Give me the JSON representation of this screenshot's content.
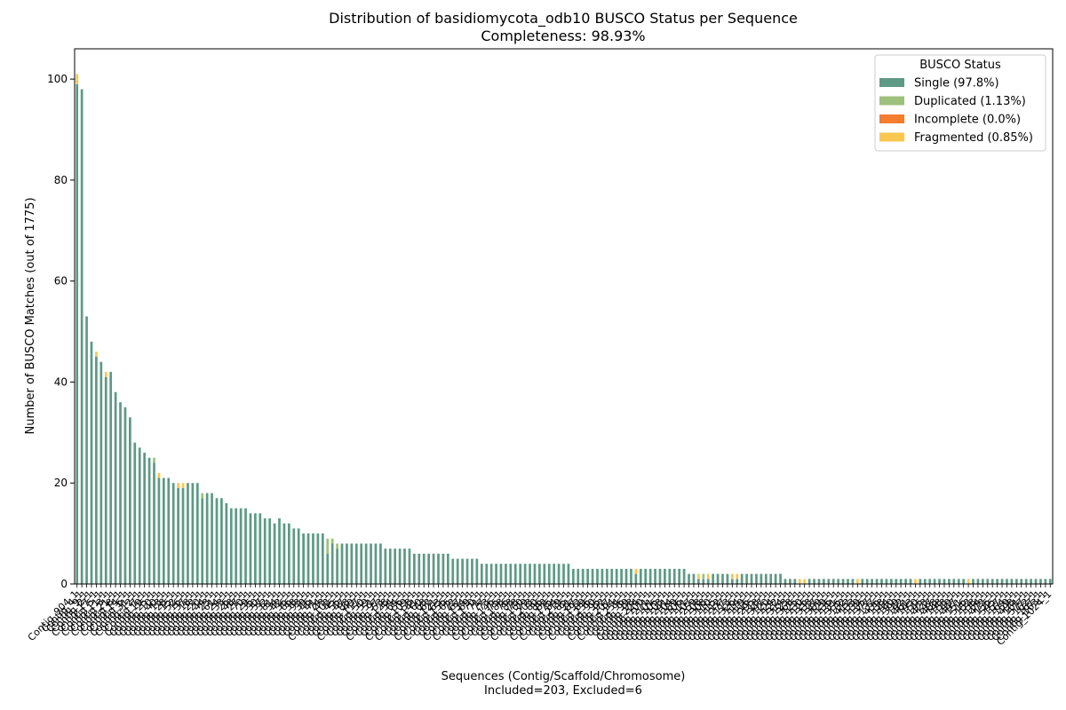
{
  "chart_data": {
    "type": "bar",
    "stacked": true,
    "title": "Distribution of basidiomycota_odb10 BUSCO Status per Sequence",
    "subtitle": "Completeness: 98.93%",
    "xlabel": "Sequences (Contig/Scaffold/Chromosome)",
    "xlabel_sub": "Included=203, Excluded=6",
    "ylabel": "Number of BUSCO Matches (out of 1775)",
    "ylim": [
      0,
      106
    ],
    "yticks": [
      0,
      20,
      40,
      60,
      80,
      100
    ],
    "grid": false,
    "legend": {
      "title": "BUSCO Status",
      "placement": "top-right"
    },
    "colors": {
      "single": "#5e9985",
      "duplicated": "#9ec17d",
      "incomplete": "#f47d2e",
      "fragmented": "#f9c74f"
    },
    "series": [
      {
        "key": "single",
        "name": "Single (97.8%)"
      },
      {
        "key": "duplicated",
        "name": "Duplicated (1.13%)"
      },
      {
        "key": "incomplete",
        "name": "Incomplete (0.0%)"
      },
      {
        "key": "fragmented",
        "name": "Fragmented (0.85%)"
      }
    ],
    "categories": [
      "Contig_904_1",
      "Contig_4_1",
      "Contig_9_1",
      "Contig_2_1",
      "Contig_17_1",
      "Contig_5_1",
      "Contig_11_1",
      "Contig_3_1",
      "Contig_21_1",
      "Contig_8_1",
      "Contig_14_1",
      "Contig_6_1",
      "Contig_31_1",
      "Contig_12_1",
      "Contig_7_1",
      "Contig_19_1",
      "Contig_25_1",
      "Contig_10_1",
      "Contig_40_1",
      "Contig_13_1",
      "Contig_28_1",
      "Contig_15_1",
      "Contig_52_1",
      "Contig_16_1",
      "Contig_37_1",
      "Contig_18_1",
      "Contig_22_1",
      "Contig_20_1",
      "Contig_44_1",
      "Contig_23_1",
      "Contig_61_1",
      "Contig_24_1",
      "Contig_33_1",
      "Contig_26_1",
      "Contig_48_1",
      "Contig_27_1",
      "Contig_70_1",
      "Contig_29_1",
      "Contig_35_1",
      "Contig_30_1",
      "Contig_57_1",
      "Contig_32_1",
      "Contig_81_1",
      "Contig_34_1",
      "Contig_42_1",
      "Contig_36_1",
      "Contig_66_1",
      "Contig_38_1",
      "Contig_93_1",
      "Contig_39_1",
      "Contig_46_1",
      "Contig_41_1",
      "Contig_74_1",
      "Contig_43_1",
      "Contig_102_1",
      "Contig_45_1",
      "Contig_55_1",
      "Contig_47_1",
      "Contig_88_1",
      "Contig_49_1",
      "Contig_117_1",
      "Contig_50_1",
      "Contig_59_1",
      "Contig_51_1",
      "Contig_97_1",
      "Contig_53_1",
      "Contig_128_1",
      "Contig_54_1",
      "Contig_64_1",
      "Contig_56_1",
      "Contig_109_1",
      "Contig_58_1",
      "Contig_141_1",
      "Contig_60_1",
      "Contig_68_1",
      "Contig_62_1",
      "Contig_121_1",
      "Contig_63_1",
      "Contig_156_1",
      "Contig_65_1",
      "Contig_72_1",
      "Contig_67_1",
      "Contig_134_1",
      "Contig_69_1",
      "Contig_170_1",
      "Contig_71_1",
      "Contig_77_1",
      "Contig_73_1",
      "Contig_146_1",
      "Contig_75_1",
      "Contig_188_1",
      "Contig_76_1",
      "Contig_83_1",
      "Contig_78_1",
      "Contig_160_1",
      "Contig_79_1",
      "Contig_203_1",
      "Contig_80_1",
      "Contig_86_1",
      "Contig_82_1",
      "Contig_175_1",
      "Contig_84_1",
      "Contig_219_1",
      "Contig_85_1",
      "Contig_91_1",
      "Contig_87_1",
      "Contig_192_1",
      "Contig_89_1",
      "Contig_236_1",
      "Contig_90_1",
      "Contig_95_1",
      "Contig_92_1",
      "Contig_207_1",
      "Contig_94_1",
      "Contig_254_1",
      "Contig_96_1",
      "Contig_99_1",
      "Contig_98_1",
      "Contig_224_1",
      "Contig_100_1",
      "Contig_271_1",
      "Contig_101_1",
      "Contig_105_1",
      "Contig_103_1",
      "Contig_241_1",
      "Contig_104_1",
      "Contig_289_1",
      "Contig_106_1",
      "Contig_111_1",
      "Contig_107_1",
      "Contig_259_1",
      "Contig_108_1",
      "Contig_308_1",
      "Contig_110_1",
      "Contig_115_1",
      "Contig_112_1",
      "Contig_277_1",
      "Contig_113_1",
      "Contig_326_1",
      "Contig_114_1",
      "Contig_119_1",
      "Contig_116_1",
      "Contig_295_1",
      "Contig_118_1",
      "Contig_347_1",
      "Contig_120_1",
      "Contig_124_1",
      "Contig_122_1",
      "Contig_314_1",
      "Contig_123_1",
      "Contig_368_1",
      "Contig_125_1",
      "Contig_130_1",
      "Contig_126_1",
      "Contig_333_1",
      "Contig_127_1",
      "Contig_389_1",
      "Contig_129_1",
      "Contig_136_1",
      "Contig_131_1",
      "Contig_355_1",
      "Contig_132_1",
      "Contig_412_1",
      "Contig_133_1",
      "Contig_139_1",
      "Contig_135_1",
      "Contig_377_1",
      "Contig_137_1",
      "Contig_436_1",
      "Contig_138_1",
      "Contig_144_1",
      "Contig_140_1",
      "Contig_399_1",
      "Contig_142_1",
      "Contig_461_1",
      "Contig_143_1",
      "Contig_150_1",
      "Contig_145_1",
      "Contig_423_1",
      "Contig_147_1",
      "Contig_488_1",
      "Contig_148_1",
      "Contig_153_1",
      "Contig_149_1",
      "Contig_447_1",
      "Contig_151_1",
      "Contig_516_1",
      "Contig_152_1",
      "Contig_158_1",
      "Contig_154_1",
      "Contig_472_1",
      "Contig_155_1",
      "Contig_545_1",
      "Contig_157_1",
      "Contig_164_1",
      "Contig_159_1",
      "Contig_498_1",
      "Contig_161_1",
      "Contig_577_1",
      "Contig_162_1",
      "Contig_167_1",
      "Contig_163_1",
      "Contig_1024_1"
    ],
    "single": [
      99,
      98,
      53,
      48,
      45,
      44,
      41,
      42,
      38,
      36,
      35,
      33,
      28,
      27,
      26,
      25,
      24,
      21,
      21,
      21,
      20,
      19,
      19,
      20,
      20,
      20,
      17,
      18,
      18,
      17,
      17,
      16,
      15,
      15,
      15,
      15,
      14,
      14,
      14,
      13,
      13,
      12,
      13,
      12,
      12,
      11,
      11,
      10,
      10,
      10,
      10,
      10,
      6,
      8,
      7,
      8,
      8,
      8,
      8,
      8,
      8,
      8,
      8,
      8,
      7,
      7,
      7,
      7,
      7,
      7,
      6,
      6,
      6,
      6,
      6,
      6,
      6,
      6,
      5,
      5,
      5,
      5,
      5,
      5,
      4,
      4,
      4,
      4,
      4,
      4,
      4,
      4,
      4,
      4,
      4,
      4,
      4,
      4,
      4,
      4,
      4,
      4,
      4,
      3,
      3,
      3,
      3,
      3,
      3,
      3,
      3,
      3,
      3,
      3,
      3,
      3,
      2,
      3,
      3,
      3,
      3,
      3,
      3,
      3,
      3,
      3,
      3,
      2,
      2,
      1,
      1,
      1,
      2,
      2,
      2,
      2,
      1,
      1,
      2,
      2,
      2,
      2,
      2,
      2,
      2,
      2,
      2,
      1,
      1,
      1,
      0,
      0,
      1,
      1,
      1,
      1,
      1,
      1,
      1,
      1,
      1,
      1,
      0,
      1,
      1,
      1,
      1,
      1,
      1,
      1,
      1,
      1,
      1,
      1,
      0,
      1,
      1,
      1,
      1,
      1,
      1,
      1,
      1,
      1,
      1,
      0,
      1,
      1,
      1,
      1,
      1,
      1,
      1,
      1,
      1,
      1,
      1,
      1,
      1,
      1,
      1,
      1,
      1,
      1,
      1
    ],
    "duplicated": [
      0,
      0,
      0,
      0,
      0,
      0,
      0,
      0,
      0,
      0,
      0,
      0,
      0,
      0,
      0,
      0,
      1,
      0,
      0,
      0,
      0,
      0,
      0,
      0,
      0,
      0,
      1,
      0,
      0,
      0,
      0,
      0,
      0,
      0,
      0,
      0,
      0,
      0,
      0,
      0,
      0,
      0,
      0,
      0,
      0,
      0,
      0,
      0,
      0,
      0,
      0,
      0,
      3,
      1,
      1,
      0,
      0,
      0,
      0,
      0,
      0,
      0,
      0,
      0,
      0,
      0,
      0,
      0,
      0,
      0,
      0,
      0,
      0,
      0,
      0,
      0,
      0,
      0,
      0,
      0,
      0,
      0,
      0,
      0,
      0,
      0,
      0,
      0,
      0,
      0,
      0,
      0,
      0,
      0,
      0,
      0,
      0,
      0,
      0,
      0,
      0,
      0,
      0,
      0,
      0,
      0,
      0,
      0,
      0,
      0,
      0,
      0,
      0,
      0,
      0,
      0,
      0,
      0,
      0,
      0,
      0,
      0,
      0,
      0,
      0,
      0,
      0,
      0,
      0,
      0,
      1,
      0,
      0,
      0,
      0,
      0,
      0,
      0,
      0,
      0,
      0,
      0,
      0,
      0,
      0,
      0,
      0,
      0,
      0,
      0,
      0,
      0,
      0,
      0,
      0,
      0,
      0,
      0,
      0,
      0,
      0,
      0,
      0,
      0,
      0,
      0,
      0,
      0,
      0,
      0,
      0,
      0,
      0,
      0,
      0,
      0,
      0,
      0,
      0,
      0,
      0,
      0,
      0,
      0,
      0,
      0,
      0,
      0,
      0,
      0,
      0,
      0,
      0,
      0,
      0,
      0,
      0,
      0,
      0,
      0,
      0,
      0,
      0
    ],
    "incomplete": [
      0,
      0,
      0,
      0,
      0,
      0,
      0,
      0,
      0,
      0,
      0,
      0,
      0,
      0,
      0,
      0,
      0,
      0,
      0,
      0,
      0,
      0,
      0,
      0,
      0,
      0,
      0,
      0,
      0,
      0,
      0,
      0,
      0,
      0,
      0,
      0,
      0,
      0,
      0,
      0,
      0,
      0,
      0,
      0,
      0,
      0,
      0,
      0,
      0,
      0,
      0,
      0,
      0,
      0,
      0,
      0,
      0,
      0,
      0,
      0,
      0,
      0,
      0,
      0,
      0,
      0,
      0,
      0,
      0,
      0,
      0,
      0,
      0,
      0,
      0,
      0,
      0,
      0,
      0,
      0,
      0,
      0,
      0,
      0,
      0,
      0,
      0,
      0,
      0,
      0,
      0,
      0,
      0,
      0,
      0,
      0,
      0,
      0,
      0,
      0,
      0,
      0,
      0,
      0,
      0,
      0,
      0,
      0,
      0,
      0,
      0,
      0,
      0,
      0,
      0,
      0,
      0,
      0,
      0,
      0,
      0,
      0,
      0,
      0,
      0,
      0,
      0,
      0,
      0,
      0,
      0,
      0,
      0,
      0,
      0,
      0,
      0,
      0,
      0,
      0,
      0,
      0,
      0,
      0,
      0,
      0,
      0,
      0,
      0,
      0,
      0,
      0,
      0,
      0,
      0,
      0,
      0,
      0,
      0,
      0,
      0,
      0,
      0,
      0,
      0,
      0,
      0,
      0,
      0,
      0,
      0,
      0,
      0,
      0,
      0,
      0,
      0,
      0,
      0,
      0,
      0,
      0,
      0,
      0,
      0,
      0,
      0,
      0,
      0,
      0,
      0,
      0,
      0,
      0,
      0,
      0,
      0,
      0,
      0,
      0,
      0,
      0,
      0
    ],
    "fragmented": [
      2,
      0,
      0,
      0,
      1,
      0,
      1,
      0,
      0,
      0,
      0,
      0,
      0,
      0,
      0,
      0,
      0,
      1,
      0,
      0,
      0,
      1,
      1,
      0,
      0,
      0,
      0,
      0,
      0,
      0,
      0,
      0,
      0,
      0,
      0,
      0,
      0,
      0,
      0,
      0,
      0,
      0,
      0,
      0,
      0,
      0,
      0,
      0,
      0,
      0,
      0,
      0,
      0,
      0,
      0,
      0,
      0,
      0,
      0,
      0,
      0,
      0,
      0,
      0,
      0,
      0,
      0,
      0,
      0,
      0,
      0,
      0,
      0,
      0,
      0,
      0,
      0,
      0,
      0,
      0,
      0,
      0,
      0,
      0,
      0,
      0,
      0,
      0,
      0,
      0,
      0,
      0,
      0,
      0,
      0,
      0,
      0,
      0,
      0,
      0,
      0,
      0,
      0,
      0,
      0,
      0,
      0,
      0,
      0,
      0,
      0,
      0,
      0,
      0,
      0,
      0,
      1,
      0,
      0,
      0,
      0,
      0,
      0,
      0,
      0,
      0,
      0,
      0,
      0,
      1,
      0,
      1,
      0,
      0,
      0,
      0,
      1,
      1,
      0,
      0,
      0,
      0,
      0,
      0,
      0,
      0,
      0,
      0,
      0,
      0,
      1,
      1,
      0,
      0,
      0,
      0,
      0,
      0,
      0,
      0,
      0,
      0,
      1,
      0,
      0,
      0,
      0,
      0,
      0,
      0,
      0,
      0,
      0,
      0,
      1,
      0,
      0,
      0,
      0,
      0,
      0,
      0,
      0,
      0,
      0,
      1,
      0,
      0,
      0,
      0,
      0,
      0,
      0,
      0,
      0,
      0,
      0,
      0,
      0,
      0,
      0,
      0,
      0,
      0,
      0
    ]
  }
}
